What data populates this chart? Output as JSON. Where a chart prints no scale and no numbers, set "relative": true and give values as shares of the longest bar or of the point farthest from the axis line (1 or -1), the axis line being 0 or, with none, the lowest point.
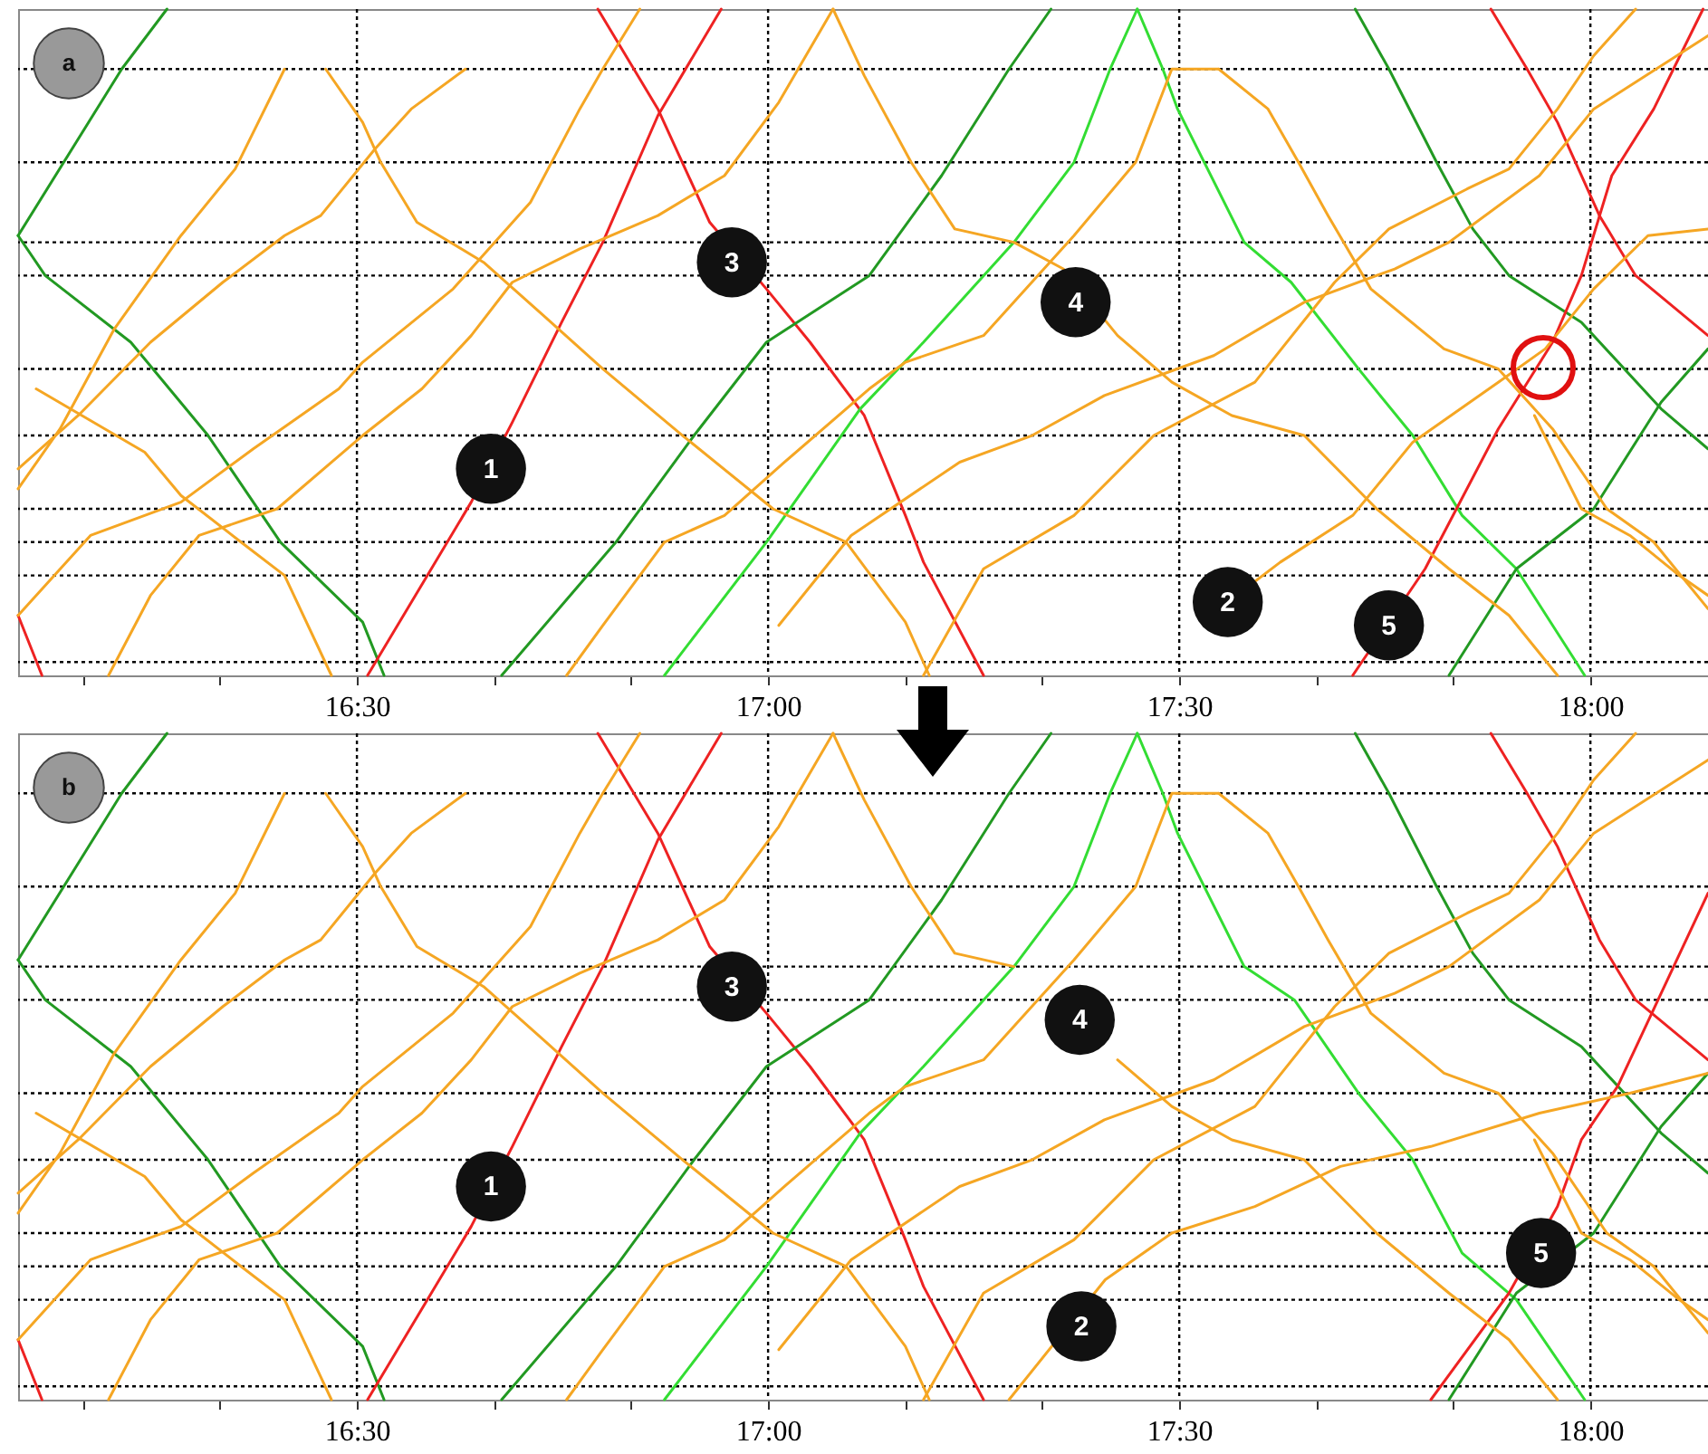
{
  "chart_data": [
    {
      "type": "line",
      "relative": true,
      "xlim": [
        16.088,
        18.143
      ],
      "xticks": [
        {
          "value": 16.1667,
          "label": null
        },
        {
          "value": 16.3333,
          "label": null
        },
        {
          "value": 16.5,
          "label": "16:30"
        },
        {
          "value": 16.6667,
          "label": null
        },
        {
          "value": 16.8333,
          "label": null
        },
        {
          "value": 17,
          "label": "17:00"
        },
        {
          "value": 17.1667,
          "label": null
        },
        {
          "value": 17.3333,
          "label": null
        },
        {
          "value": 17.5,
          "label": "17:30"
        },
        {
          "value": 17.6667,
          "label": null
        },
        {
          "value": 17.8333,
          "label": null
        },
        {
          "value": 18,
          "label": "18:00"
        }
      ],
      "series": [
        {
          "color": "#229922",
          "x": [
            16.088,
            16.214,
            16.269
          ],
          "values": [
            0.66,
            0.91,
            1.0
          ]
        },
        {
          "color": "#229922",
          "x": [
            16.088,
            16.121,
            16.225,
            16.319,
            16.407,
            16.507,
            16.533
          ],
          "values": [
            0.66,
            0.6,
            0.5,
            0.36,
            0.2,
            0.08,
            0.0
          ]
        },
        {
          "color": "#ee2222",
          "x": [
            16.513,
            16.639,
            16.689,
            16.749,
            16.799,
            16.866,
            16.943
          ],
          "values": [
            0.0,
            0.26,
            0.38,
            0.53,
            0.65,
            0.84,
            1.0
          ]
        },
        {
          "color": "#ee2222",
          "x": [
            16.793,
            16.866,
            16.929,
            16.998,
            17.051,
            17.117,
            17.167,
            17.189,
            17.262
          ],
          "values": [
            1.0,
            0.85,
            0.68,
            0.58,
            0.5,
            0.39,
            0.24,
            0.17,
            0.0
          ]
        },
        {
          "color": "#229922",
          "x": [
            16.676,
            16.815,
            16.91,
            16.998,
            17.123,
            17.211,
            17.293,
            17.344
          ],
          "values": [
            0.0,
            0.2,
            0.36,
            0.5,
            0.6,
            0.75,
            0.91,
            1.0
          ]
        },
        {
          "color": "#33dd33",
          "x": [
            16.874,
            16.998,
            17.112,
            17.189,
            17.299,
            17.372,
            17.416,
            17.449
          ],
          "values": [
            0.0,
            0.2,
            0.4,
            0.5,
            0.65,
            0.77,
            0.91,
            1.0
          ]
        },
        {
          "color": "#33dd33",
          "x": [
            17.449,
            17.48,
            17.498,
            17.579,
            17.636,
            17.718,
            17.784,
            17.844,
            17.91,
            17.993
          ],
          "values": [
            1.0,
            0.91,
            0.85,
            0.65,
            0.59,
            0.46,
            0.36,
            0.24,
            0.16,
            0.0
          ]
        },
        {
          "color": "#229922",
          "x": [
            17.714,
            17.755,
            17.813,
            17.857,
            17.901,
            17.989,
            18.086,
            18.143
          ],
          "values": [
            1.0,
            0.91,
            0.77,
            0.67,
            0.6,
            0.53,
            0.4,
            0.34
          ]
        },
        {
          "color": "#229922",
          "x": [
            17.828,
            17.91,
            18.004,
            18.086,
            18.143
          ],
          "values": [
            0.0,
            0.16,
            0.25,
            0.41,
            0.49
          ]
        },
        {
          "color": "#ee2222",
          "x": [
            17.711,
            17.799,
            17.888,
            17.954,
            17.989,
            18.026,
            18.077,
            18.137
          ],
          "values": [
            0.0,
            0.16,
            0.37,
            0.5,
            0.6,
            0.75,
            0.85,
            1.0
          ]
        },
        {
          "color": "#ee2222",
          "x": [
            17.879,
            17.923,
            17.96,
            18.011,
            18.055,
            18.143
          ],
          "values": [
            1.0,
            0.91,
            0.83,
            0.69,
            0.6,
            0.51
          ]
        },
        {
          "color": "#ee2222",
          "x": [
            16.088,
            16.117
          ],
          "values": [
            0.09,
            0.0
          ]
        },
        {
          "color": "#f5a623",
          "x": [
            16.462,
            16.507,
            16.529,
            16.573,
            16.654,
            16.727,
            16.799,
            16.896,
            17.006,
            17.095,
            17.167,
            17.196
          ],
          "values": [
            0.91,
            0.83,
            0.77,
            0.68,
            0.62,
            0.54,
            0.46,
            0.36,
            0.25,
            0.2,
            0.08,
            0.0
          ]
        },
        {
          "color": "#f5a623",
          "x": [
            16.088,
            16.139,
            16.205,
            16.286,
            16.352,
            16.412
          ],
          "values": [
            0.28,
            0.37,
            0.52,
            0.66,
            0.76,
            0.91
          ]
        },
        {
          "color": "#f5a623",
          "x": [
            16.088,
            16.161,
            16.249,
            16.337,
            16.412,
            16.456,
            16.522,
            16.566,
            16.632
          ],
          "values": [
            0.31,
            0.39,
            0.5,
            0.59,
            0.66,
            0.69,
            0.79,
            0.85,
            0.91
          ]
        },
        {
          "color": "#f5a623",
          "x": [
            16.198,
            16.249,
            16.308,
            16.403,
            16.507,
            16.579,
            16.639,
            16.689,
            16.771,
            16.866,
            16.947,
            17.013,
            17.079
          ],
          "values": [
            0.0,
            0.12,
            0.21,
            0.25,
            0.36,
            0.43,
            0.51,
            0.59,
            0.64,
            0.69,
            0.75,
            0.86,
            1.0
          ]
        },
        {
          "color": "#f5a623",
          "x": [
            16.088,
            16.176,
            16.286,
            16.374,
            16.478,
            16.507,
            16.617,
            16.711,
            16.771,
            16.799,
            16.844
          ],
          "values": [
            0.09,
            0.21,
            0.26,
            0.34,
            0.43,
            0.47,
            0.58,
            0.71,
            0.85,
            0.91,
            1.0
          ]
        },
        {
          "color": "#f5a623",
          "x": [
            16.11,
            16.242,
            16.286,
            16.359,
            16.412,
            16.469
          ],
          "values": [
            0.43,
            0.335,
            0.27,
            0.2,
            0.15,
            0.0
          ]
        },
        {
          "color": "#f5a623",
          "x": [
            17.079,
            17.117,
            17.174,
            17.227,
            17.299,
            17.359,
            17.425,
            17.491,
            17.564,
            17.652,
            17.74,
            17.828,
            17.901,
            17.96
          ],
          "values": [
            1.0,
            0.9,
            0.77,
            0.67,
            0.65,
            0.61,
            0.51,
            0.44,
            0.39,
            0.36,
            0.25,
            0.16,
            0.09,
            0.0
          ]
        },
        {
          "color": "#f5a623",
          "x": [
            16.755,
            16.799,
            16.874,
            16.947,
            17.02,
            17.123,
            17.167,
            17.262,
            17.372,
            17.447,
            17.491,
            17.548
          ],
          "values": [
            0.0,
            0.075,
            0.2,
            0.24,
            0.32,
            0.43,
            0.47,
            0.51,
            0.66,
            0.77,
            0.91,
            0.91
          ]
        },
        {
          "color": "#f5a623",
          "x": [
            17.548,
            17.608,
            17.645,
            17.681,
            17.733,
            17.822,
            17.888,
            17.954,
            18.02,
            18.077,
            18.143
          ],
          "values": [
            0.91,
            0.85,
            0.77,
            0.69,
            0.58,
            0.49,
            0.46,
            0.37,
            0.25,
            0.2,
            0.1
          ]
        },
        {
          "color": "#f5a623",
          "x": [
            17.013,
            17.101,
            17.233,
            17.321,
            17.409,
            17.542,
            17.652,
            17.762,
            17.828,
            17.938,
            18.004,
            18.143
          ],
          "values": [
            0.075,
            0.21,
            0.32,
            0.36,
            0.42,
            0.48,
            0.56,
            0.61,
            0.65,
            0.75,
            0.85,
            0.96
          ]
        },
        {
          "color": "#f5a623",
          "x": [
            17.559,
            17.623,
            17.711,
            17.784,
            17.888,
            17.945,
            18.004,
            18.07,
            18.143
          ],
          "values": [
            0.11,
            0.17,
            0.24,
            0.35,
            0.44,
            0.49,
            0.58,
            0.66,
            0.67
          ]
        },
        {
          "color": "#f5a623",
          "x": [
            17.189,
            17.262,
            17.372,
            17.469,
            17.592,
            17.689,
            17.755,
            17.85,
            17.901,
            17.96,
            18.004,
            18.055
          ],
          "values": [
            0.0,
            0.16,
            0.24,
            0.36,
            0.44,
            0.59,
            0.67,
            0.73,
            0.76,
            0.85,
            0.93,
            1.0
          ]
        },
        {
          "color": "#f5a623",
          "x": [
            17.932,
            17.989,
            18.048,
            18.108,
            18.143
          ],
          "values": [
            0.39,
            0.25,
            0.21,
            0.15,
            0.12
          ]
        }
      ],
      "ref_lines": [
        {
          "axis": "x",
          "value": 16.5,
          "color": "#000000",
          "line_style": "dotted"
        },
        {
          "axis": "x",
          "value": 17,
          "color": "#000000",
          "line_style": "dotted"
        },
        {
          "axis": "x",
          "value": 17.5,
          "color": "#000000",
          "line_style": "dotted"
        },
        {
          "axis": "x",
          "value": 18,
          "color": "#000000",
          "line_style": "dotted"
        },
        {
          "axis": "y",
          "value": 0.02,
          "color": "#000000",
          "line_style": "dotted"
        },
        {
          "axis": "y",
          "value": 0.15,
          "color": "#000000",
          "line_style": "dotted"
        },
        {
          "axis": "y",
          "value": 0.2,
          "color": "#000000",
          "line_style": "dotted"
        },
        {
          "axis": "y",
          "value": 0.25,
          "color": "#000000",
          "line_style": "dotted"
        },
        {
          "axis": "y",
          "value": 0.36,
          "color": "#000000",
          "line_style": "dotted"
        },
        {
          "axis": "y",
          "value": 0.46,
          "color": "#000000",
          "line_style": "dotted"
        },
        {
          "axis": "y",
          "value": 0.6,
          "color": "#000000",
          "line_style": "dotted"
        },
        {
          "axis": "y",
          "value": 0.65,
          "color": "#000000",
          "line_style": "dotted"
        },
        {
          "axis": "y",
          "value": 0.77,
          "color": "#000000",
          "line_style": "dotted"
        },
        {
          "axis": "y",
          "value": 0.91,
          "color": "#000000",
          "line_style": "dotted"
        }
      ],
      "annotations": [
        "a",
        {
          "text": "1",
          "x": 16.663,
          "y": 0.31
        },
        {
          "text": "3",
          "x": 16.956,
          "y": 0.62
        },
        {
          "text": "4",
          "x": 17.374,
          "y": 0.56
        },
        {
          "text": "2",
          "x": 17.559,
          "y": 0.11
        },
        {
          "text": "5",
          "x": 17.755,
          "y": 0.075
        }
      ]
    },
    {
      "type": "line",
      "relative": true,
      "xlim": [
        16.088,
        18.143
      ],
      "xticks": [
        {
          "value": 16.1667,
          "label": null
        },
        {
          "value": 16.3333,
          "label": null
        },
        {
          "value": 16.5,
          "label": "16:30"
        },
        {
          "value": 16.6667,
          "label": null
        },
        {
          "value": 16.8333,
          "label": null
        },
        {
          "value": 17,
          "label": "17:00"
        },
        {
          "value": 17.1667,
          "label": null
        },
        {
          "value": 17.3333,
          "label": null
        },
        {
          "value": 17.5,
          "label": "17:30"
        },
        {
          "value": 17.6667,
          "label": null
        },
        {
          "value": 17.8333,
          "label": null
        },
        {
          "value": 18,
          "label": "18:00"
        }
      ],
      "series": [
        {
          "color": "#229922",
          "x": [
            16.088,
            16.214,
            16.269
          ],
          "values": [
            0.66,
            0.91,
            1.0
          ]
        },
        {
          "color": "#229922",
          "x": [
            16.088,
            16.121,
            16.225,
            16.319,
            16.407,
            16.507,
            16.533
          ],
          "values": [
            0.66,
            0.6,
            0.5,
            0.36,
            0.2,
            0.08,
            0.0
          ]
        },
        {
          "color": "#ee2222",
          "x": [
            16.513,
            16.639,
            16.689,
            16.749,
            16.799,
            16.866,
            16.943
          ],
          "values": [
            0.0,
            0.26,
            0.38,
            0.53,
            0.65,
            0.84,
            1.0
          ]
        },
        {
          "color": "#ee2222",
          "x": [
            16.793,
            16.866,
            16.929,
            16.998,
            17.051,
            17.117,
            17.167,
            17.189,
            17.262
          ],
          "values": [
            1.0,
            0.85,
            0.68,
            0.58,
            0.5,
            0.39,
            0.24,
            0.17,
            0.0
          ]
        },
        {
          "color": "#229922",
          "x": [
            16.676,
            16.815,
            16.91,
            16.998,
            17.123,
            17.211,
            17.293,
            17.344
          ],
          "values": [
            0.0,
            0.2,
            0.36,
            0.5,
            0.6,
            0.75,
            0.91,
            1.0
          ]
        },
        {
          "color": "#33dd33",
          "x": [
            16.874,
            16.998,
            17.112,
            17.189,
            17.299,
            17.372,
            17.416,
            17.449
          ],
          "values": [
            0.0,
            0.2,
            0.4,
            0.5,
            0.65,
            0.77,
            0.91,
            1.0
          ]
        },
        {
          "color": "#33dd33",
          "x": [
            17.449,
            17.48,
            17.498,
            17.579,
            17.64,
            17.718,
            17.784,
            17.844,
            17.91,
            17.993
          ],
          "values": [
            1.0,
            0.91,
            0.85,
            0.65,
            0.6,
            0.46,
            0.36,
            0.22,
            0.15,
            0.0
          ]
        },
        {
          "color": "#229922",
          "x": [
            17.714,
            17.755,
            17.813,
            17.857,
            17.901,
            17.989,
            18.086,
            18.143
          ],
          "values": [
            1.0,
            0.91,
            0.77,
            0.67,
            0.6,
            0.53,
            0.4,
            0.34
          ]
        },
        {
          "color": "#229922",
          "x": [
            17.828,
            17.91,
            18.004,
            18.086,
            18.143
          ],
          "values": [
            0.0,
            0.16,
            0.25,
            0.41,
            0.49
          ]
        },
        {
          "color": "#ee2222",
          "x": [
            17.806,
            17.901,
            17.96,
            17.989,
            18.033,
            18.086,
            18.143
          ],
          "values": [
            0.0,
            0.16,
            0.29,
            0.39,
            0.47,
            0.61,
            0.76
          ]
        },
        {
          "color": "#ee2222",
          "x": [
            17.879,
            17.923,
            17.96,
            18.011,
            18.055,
            18.143
          ],
          "values": [
            1.0,
            0.91,
            0.83,
            0.69,
            0.6,
            0.51
          ]
        },
        {
          "color": "#ee2222",
          "x": [
            16.088,
            16.117
          ],
          "values": [
            0.09,
            0.0
          ]
        },
        {
          "color": "#f5a623",
          "x": [
            16.462,
            16.507,
            16.529,
            16.573,
            16.654,
            16.727,
            16.799,
            16.896,
            17.006,
            17.095,
            17.167,
            17.196
          ],
          "values": [
            0.91,
            0.83,
            0.77,
            0.68,
            0.62,
            0.54,
            0.46,
            0.36,
            0.25,
            0.2,
            0.08,
            0.0
          ]
        },
        {
          "color": "#f5a623",
          "x": [
            16.088,
            16.139,
            16.205,
            16.286,
            16.352,
            16.412
          ],
          "values": [
            0.28,
            0.37,
            0.52,
            0.66,
            0.76,
            0.91
          ]
        },
        {
          "color": "#f5a623",
          "x": [
            16.088,
            16.161,
            16.249,
            16.337,
            16.412,
            16.456,
            16.522,
            16.566,
            16.632
          ],
          "values": [
            0.31,
            0.39,
            0.5,
            0.59,
            0.66,
            0.69,
            0.79,
            0.85,
            0.91
          ]
        },
        {
          "color": "#f5a623",
          "x": [
            16.198,
            16.249,
            16.308,
            16.403,
            16.507,
            16.579,
            16.639,
            16.689,
            16.771,
            16.866,
            16.947,
            17.013,
            17.079
          ],
          "values": [
            0.0,
            0.12,
            0.21,
            0.25,
            0.36,
            0.43,
            0.51,
            0.59,
            0.64,
            0.69,
            0.75,
            0.86,
            1.0
          ]
        },
        {
          "color": "#f5a623",
          "x": [
            16.088,
            16.176,
            16.286,
            16.374,
            16.478,
            16.507,
            16.617,
            16.711,
            16.771,
            16.799,
            16.844
          ],
          "values": [
            0.09,
            0.21,
            0.26,
            0.34,
            0.43,
            0.47,
            0.58,
            0.71,
            0.85,
            0.91,
            1.0
          ]
        },
        {
          "color": "#f5a623",
          "x": [
            16.11,
            16.242,
            16.286,
            16.359,
            16.412,
            16.469
          ],
          "values": [
            0.43,
            0.335,
            0.27,
            0.2,
            0.15,
            0.0
          ]
        },
        {
          "color": "#f5a623",
          "x": [
            17.079,
            17.117,
            17.174,
            17.227,
            17.299,
            17.359,
            17.425,
            17.491,
            17.564,
            17.652,
            17.74,
            17.828,
            17.901,
            17.96
          ],
          "values": [
            1.0,
            0.9,
            0.77,
            0.67,
            0.65,
            null,
            0.51,
            0.44,
            0.39,
            0.36,
            0.25,
            0.16,
            0.09,
            0.0
          ]
        },
        {
          "color": "#f5a623",
          "x": [
            16.755,
            16.799,
            16.874,
            16.947,
            17.02,
            17.123,
            17.167,
            17.262,
            17.372,
            17.447,
            17.491,
            17.548
          ],
          "values": [
            0.0,
            0.075,
            0.2,
            0.24,
            0.32,
            0.43,
            0.47,
            0.51,
            0.66,
            0.77,
            0.91,
            0.91
          ]
        },
        {
          "color": "#f5a623",
          "x": [
            17.548,
            17.608,
            17.645,
            17.681,
            17.733,
            17.822,
            17.888,
            17.954,
            18.02,
            18.077,
            18.143
          ],
          "values": [
            0.91,
            0.85,
            0.77,
            0.69,
            0.58,
            0.49,
            0.46,
            0.37,
            0.25,
            0.2,
            0.1
          ]
        },
        {
          "color": "#f5a623",
          "x": [
            17.013,
            17.101,
            17.233,
            17.321,
            17.409,
            17.542,
            17.652,
            17.762,
            17.828,
            17.938,
            18.004,
            18.143
          ],
          "values": [
            0.075,
            0.21,
            0.32,
            0.36,
            0.42,
            0.48,
            0.56,
            0.61,
            0.65,
            0.75,
            0.85,
            0.96
          ]
        },
        {
          "color": "#f5a623",
          "x": [
            17.293,
            17.41,
            17.491,
            17.592,
            17.696,
            17.806,
            17.938,
            18.048,
            18.143
          ],
          "values": [
            0.0,
            0.18,
            0.25,
            0.29,
            0.35,
            0.38,
            0.43,
            0.46,
            0.49
          ]
        },
        {
          "color": "#f5a623",
          "x": [
            17.189,
            17.262,
            17.372,
            17.469,
            17.592,
            17.689,
            17.755,
            17.85,
            17.901,
            17.96,
            18.004,
            18.055
          ],
          "values": [
            0.0,
            0.16,
            0.24,
            0.36,
            0.44,
            0.59,
            0.67,
            0.73,
            0.76,
            0.85,
            0.93,
            1.0
          ]
        },
        {
          "color": "#f5a623",
          "x": [
            17.932,
            17.989,
            18.048,
            18.108,
            18.143
          ],
          "values": [
            0.39,
            0.25,
            0.21,
            0.15,
            0.12
          ]
        }
      ],
      "ref_lines": [
        {
          "axis": "x",
          "value": 16.5,
          "color": "#000000",
          "line_style": "dotted"
        },
        {
          "axis": "x",
          "value": 17,
          "color": "#000000",
          "line_style": "dotted"
        },
        {
          "axis": "x",
          "value": 17.5,
          "color": "#000000",
          "line_style": "dotted"
        },
        {
          "axis": "x",
          "value": 18,
          "color": "#000000",
          "line_style": "dotted"
        },
        {
          "axis": "y",
          "value": 0.02,
          "color": "#000000",
          "line_style": "dotted"
        },
        {
          "axis": "y",
          "value": 0.15,
          "color": "#000000",
          "line_style": "dotted"
        },
        {
          "axis": "y",
          "value": 0.2,
          "color": "#000000",
          "line_style": "dotted"
        },
        {
          "axis": "y",
          "value": 0.25,
          "color": "#000000",
          "line_style": "dotted"
        },
        {
          "axis": "y",
          "value": 0.36,
          "color": "#000000",
          "line_style": "dotted"
        },
        {
          "axis": "y",
          "value": 0.46,
          "color": "#000000",
          "line_style": "dotted"
        },
        {
          "axis": "y",
          "value": 0.6,
          "color": "#000000",
          "line_style": "dotted"
        },
        {
          "axis": "y",
          "value": 0.65,
          "color": "#000000",
          "line_style": "dotted"
        },
        {
          "axis": "y",
          "value": 0.77,
          "color": "#000000",
          "line_style": "dotted"
        },
        {
          "axis": "y",
          "value": 0.91,
          "color": "#000000",
          "line_style": "dotted"
        }
      ],
      "annotations": [
        "b",
        {
          "text": "1",
          "x": 16.663,
          "y": 0.32
        },
        {
          "text": "3",
          "x": 16.956,
          "y": 0.62
        },
        {
          "text": "4",
          "x": 17.379,
          "y": 0.57
        },
        {
          "text": "2",
          "x": 17.381,
          "y": 0.11
        },
        {
          "text": "5",
          "x": 17.94,
          "y": 0.22
        }
      ]
    }
  ]
}
